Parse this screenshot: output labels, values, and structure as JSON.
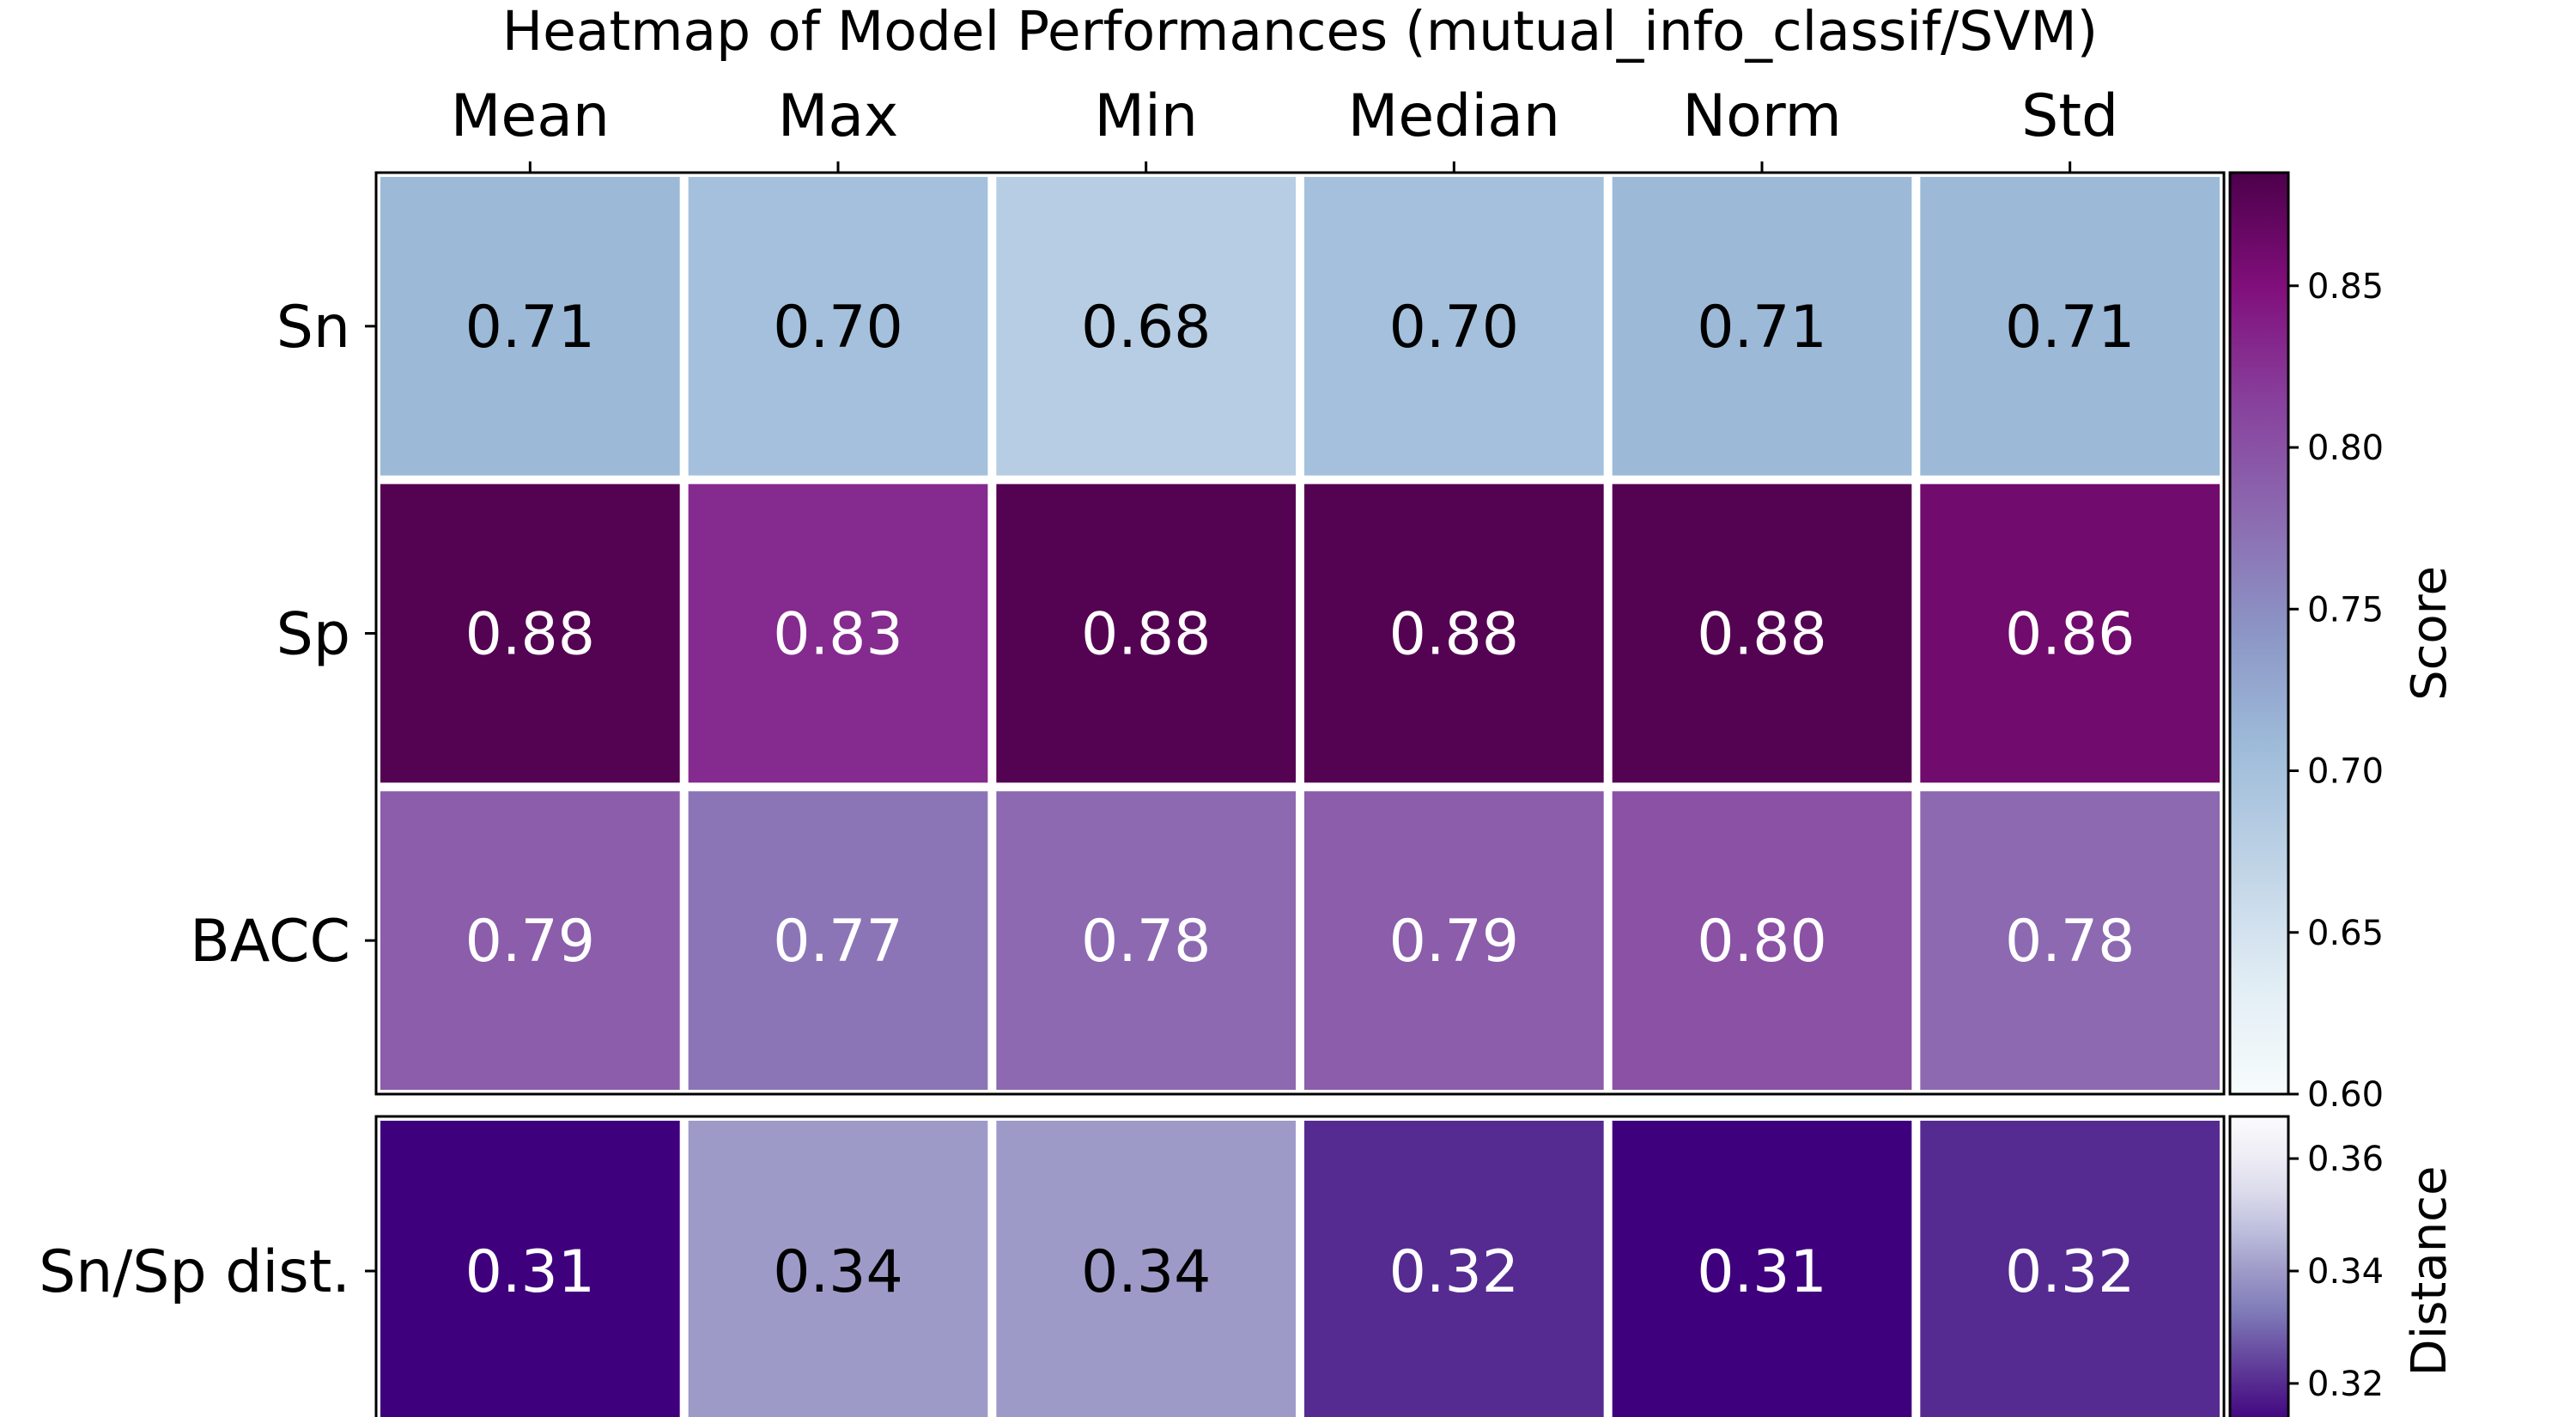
{
  "chart_data": [
    {
      "type": "heatmap",
      "title": "Heatmap of Model Performances (mutual_info_classif/SVM)",
      "columns": [
        "Mean",
        "Max",
        "Min",
        "Median",
        "Norm",
        "Std"
      ],
      "rows": [
        "Sn",
        "Sp",
        "BACC"
      ],
      "values": [
        [
          0.71,
          0.7,
          0.68,
          0.7,
          0.71,
          0.71
        ],
        [
          0.88,
          0.83,
          0.88,
          0.88,
          0.88,
          0.86
        ],
        [
          0.79,
          0.77,
          0.78,
          0.79,
          0.8,
          0.78
        ]
      ],
      "value_labels": [
        [
          "0.71",
          "0.70",
          "0.68",
          "0.70",
          "0.71",
          "0.71"
        ],
        [
          "0.88",
          "0.83",
          "0.88",
          "0.88",
          "0.88",
          "0.86"
        ],
        [
          "0.79",
          "0.77",
          "0.78",
          "0.79",
          "0.80",
          "0.78"
        ]
      ],
      "colormap": "BuPu",
      "colorbar": {
        "label": "Score",
        "range": [
          0.6,
          0.885
        ],
        "ticks": [
          "0.60",
          "0.65",
          "0.70",
          "0.75",
          "0.80",
          "0.85"
        ]
      }
    },
    {
      "type": "heatmap",
      "columns": [
        "Mean",
        "Max",
        "Min",
        "Median",
        "Norm",
        "Std"
      ],
      "rows": [
        "Sn/Sp dist."
      ],
      "values": [
        [
          0.31,
          0.34,
          0.34,
          0.32,
          0.31,
          0.32
        ]
      ],
      "value_labels": [
        [
          "0.31",
          "0.34",
          "0.34",
          "0.32",
          "0.31",
          "0.32"
        ]
      ],
      "colormap": "Purples_r",
      "colorbar": {
        "label": "Distance",
        "range": [
          0.3125,
          0.3675
        ],
        "ticks": [
          "0.32",
          "0.34",
          "0.36"
        ]
      }
    }
  ]
}
